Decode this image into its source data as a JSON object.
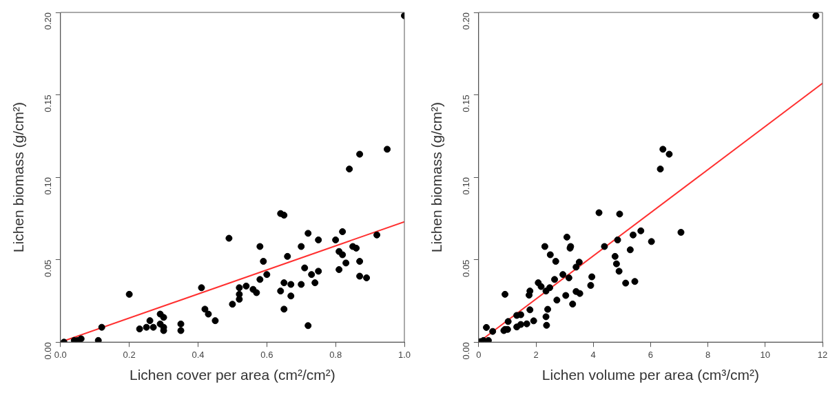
{
  "chart_data": [
    {
      "type": "scatter",
      "xlabel": "Lichen cover per area (cm²/cm²)",
      "ylabel": "Lichen biomass (g/cm²)",
      "xlim": [
        0,
        1
      ],
      "ylim": [
        0,
        0.2
      ],
      "xticks": [
        {
          "value": 0,
          "label": "0.0"
        },
        0.2,
        0.4,
        0.6,
        0.8,
        {
          "value": 1,
          "label": "1.0"
        }
      ],
      "yticks": [
        {
          "value": 0,
          "label": "0.00"
        },
        {
          "value": 0.05,
          "label": "0.05"
        },
        {
          "value": 0.1,
          "label": "0.10"
        },
        {
          "value": 0.15,
          "label": "0.15"
        },
        {
          "value": 0.2,
          "label": "0.20"
        }
      ],
      "grid": false,
      "legend": false,
      "series": [
        {
          "type": "scatter",
          "marker": "circle",
          "color": "#000000",
          "x": [
            0.01,
            0.04,
            0.05,
            0.06,
            0.11,
            0.12,
            0.2,
            0.23,
            0.25,
            0.26,
            0.27,
            0.29,
            0.29,
            0.3,
            0.3,
            0.3,
            0.35,
            0.35,
            0.41,
            0.42,
            0.43,
            0.45,
            0.49,
            0.5,
            0.52,
            0.52,
            0.52,
            0.54,
            0.56,
            0.57,
            0.58,
            0.58,
            0.59,
            0.6,
            0.64,
            0.65,
            0.64,
            0.65,
            0.65,
            0.66,
            0.67,
            0.67,
            0.7,
            0.7,
            0.71,
            0.72,
            0.72,
            0.73,
            0.74,
            0.75,
            0.75,
            0.8,
            0.81,
            0.81,
            0.82,
            0.82,
            0.83,
            0.84,
            0.85,
            0.86,
            0.87,
            0.87,
            0.87,
            0.89,
            0.92,
            0.95,
            1.0
          ],
          "values": [
            0.0,
            0.001,
            0.001,
            0.002,
            0.001,
            0.009,
            0.029,
            0.008,
            0.009,
            0.013,
            0.009,
            0.017,
            0.011,
            0.015,
            0.009,
            0.007,
            0.011,
            0.007,
            0.033,
            0.02,
            0.017,
            0.013,
            0.063,
            0.023,
            0.029,
            0.026,
            0.033,
            0.034,
            0.032,
            0.03,
            0.058,
            0.038,
            0.049,
            0.041,
            0.078,
            0.077,
            0.031,
            0.036,
            0.02,
            0.052,
            0.035,
            0.028,
            0.058,
            0.035,
            0.045,
            0.066,
            0.01,
            0.041,
            0.036,
            0.043,
            0.062,
            0.062,
            0.044,
            0.055,
            0.067,
            0.053,
            0.048,
            0.105,
            0.058,
            0.057,
            0.114,
            0.049,
            0.04,
            0.039,
            0.065,
            0.117,
            0.198
          ]
        },
        {
          "type": "line",
          "color": "#ff3030",
          "x": [
            0,
            1
          ],
          "values": [
            0,
            0.073
          ]
        }
      ]
    },
    {
      "type": "scatter",
      "xlabel": "Lichen volume per area (cm³/cm²)",
      "ylabel": "Lichen biomass (g/cm²)",
      "xlim": [
        0,
        12
      ],
      "ylim": [
        0,
        0.2
      ],
      "xticks": [
        0,
        2,
        4,
        6,
        8,
        10,
        12
      ],
      "yticks": [
        {
          "value": 0,
          "label": "0.00"
        },
        {
          "value": 0.05,
          "label": "0.05"
        },
        {
          "value": 0.1,
          "label": "0.10"
        },
        {
          "value": 0.15,
          "label": "0.15"
        },
        {
          "value": 0.2,
          "label": "0.20"
        }
      ],
      "grid": false,
      "legend": false,
      "series": [
        {
          "type": "scatter",
          "marker": "circle",
          "color": "#000000",
          "x": [
            6.34,
            4.2,
            4.92,
            7.06,
            5.66,
            5.39,
            6.03,
            4.85,
            4.39,
            3.08,
            3.21,
            3.19,
            2.31,
            2.5,
            2.69,
            3.51,
            3.4,
            4.76,
            4.81,
            4.9,
            5.29,
            2.94,
            3.15,
            2.65,
            3.95,
            3.91,
            2.08,
            2.18,
            2.35,
            2.48,
            1.79,
            1.76,
            0.92,
            3.4,
            3.53,
            3.04,
            2.73,
            3.28,
            5.13,
            5.45,
            1.79,
            2.41,
            2.35,
            2.37,
            1.92,
            1.68,
            1.47,
            1.33,
            1.47,
            1.33,
            1.03,
            0.92,
            1.01,
            0.88,
            0.27,
            0.49,
            0.17,
            0.34,
            0.06,
            11.77,
            6.43,
            6.65
          ],
          "values": [
            0.105,
            0.0785,
            0.0777,
            0.0666,
            0.0675,
            0.065,
            0.061,
            0.062,
            0.058,
            0.0637,
            0.058,
            0.057,
            0.058,
            0.053,
            0.049,
            0.0485,
            0.0455,
            0.052,
            0.0475,
            0.043,
            0.056,
            0.041,
            0.039,
            0.038,
            0.0396,
            0.0344,
            0.036,
            0.0337,
            0.031,
            0.033,
            0.031,
            0.0285,
            0.029,
            0.0307,
            0.0295,
            0.0283,
            0.0255,
            0.0231,
            0.0358,
            0.0368,
            0.0196,
            0.0199,
            0.0154,
            0.0102,
            0.0129,
            0.0111,
            0.0107,
            0.0092,
            0.0166,
            0.0162,
            0.0125,
            0.0077,
            0.0077,
            0.007,
            0.0089,
            0.0065,
            0.001,
            0.001,
            0.0003,
            0.198,
            0.117,
            0.114
          ]
        },
        {
          "type": "line",
          "color": "#ff3030",
          "x": [
            0,
            12
          ],
          "values": [
            0,
            0.157
          ]
        }
      ]
    }
  ]
}
